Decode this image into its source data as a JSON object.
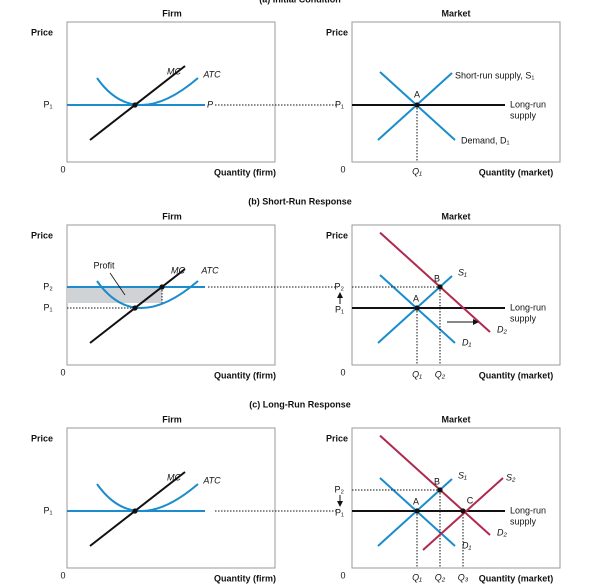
{
  "panels": [
    {
      "title": "(a) Initial Condition",
      "firm": {
        "heading": "Firm",
        "y_axis": "Price",
        "x_axis": "Quantity (firm)",
        "origin": "0",
        "p1": "P₁",
        "mc": "MC",
        "atc": "ATC",
        "p": "P"
      },
      "market": {
        "heading": "Market",
        "y_axis": "Price",
        "x_axis": "Quantity (market)",
        "origin": "0",
        "p1": "P₁",
        "q1": "Q₁",
        "a": "A",
        "s1": "Short-run supply, S₁",
        "d1": "Demand, D₁",
        "lrs": [
          "Long-run",
          "supply"
        ]
      }
    },
    {
      "title": "(b) Short-Run Response",
      "firm": {
        "heading": "Firm",
        "y_axis": "Price",
        "x_axis": "Quantity (firm)",
        "origin": "0",
        "p2": "P₂",
        "p1": "P₁",
        "profit": "Profit",
        "mc": "MC",
        "atc": "ATC"
      },
      "market": {
        "heading": "Market",
        "y_axis": "Price",
        "x_axis": "Quantity (market)",
        "origin": "0",
        "p2": "P₂",
        "p1": "P₁",
        "q1": "Q₁",
        "q2": "Q₂",
        "a": "A",
        "b": "B",
        "s1": "S₁",
        "d1": "D₁",
        "d2": "D₂",
        "lrs": [
          "Long-run",
          "supply"
        ]
      }
    },
    {
      "title": "(c) Long-Run Response",
      "firm": {
        "heading": "Firm",
        "y_axis": "Price",
        "x_axis": "Quantity (firm)",
        "origin": "0",
        "p1": "P₁",
        "mc": "MC",
        "atc": "ATC"
      },
      "market": {
        "heading": "Market",
        "y_axis": "Price",
        "x_axis": "Quantity (market)",
        "origin": "0",
        "p2": "P₂",
        "p1": "P₁",
        "q1": "Q₁",
        "q2": "Q₂",
        "q3": "Q₃",
        "a": "A",
        "b": "B",
        "c": "C",
        "s1": "S₁",
        "s2": "S₂",
        "d1": "D₁",
        "d2": "D₂",
        "lrs": [
          "Long-run",
          "supply"
        ]
      }
    }
  ]
}
